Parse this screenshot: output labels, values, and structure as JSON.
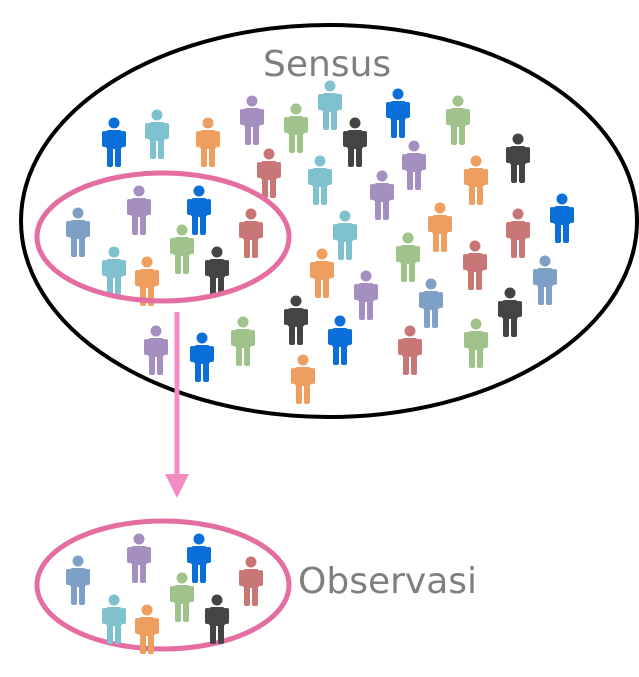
{
  "labels": {
    "population": "Sensus",
    "sample": "Observasi"
  },
  "colors": {
    "population_outline": "#000000",
    "sample_outline": "#e46da1",
    "arrow": "#f48cc4",
    "label_text": "#7f7f7f",
    "person_palette": {
      "blue": "#0a6fd8",
      "teal": "#7fc1cf",
      "orange": "#ee9e5e",
      "purple": "#a48fc0",
      "green": "#9fc38a",
      "red": "#c97676",
      "black": "#444444",
      "steel": "#7e9fc6"
    }
  },
  "population_people": [
    "blue",
    "teal",
    "orange",
    "purple",
    "green",
    "teal",
    "blue",
    "green",
    "black",
    "red",
    "purple",
    "black",
    "teal",
    "purple",
    "orange",
    "teal",
    "orange",
    "red",
    "blue",
    "green",
    "orange",
    "red",
    "steel",
    "steel",
    "purple",
    "black",
    "black",
    "blue",
    "red",
    "green",
    "purple",
    "blue",
    "green",
    "orange"
  ],
  "sample_people": [
    "steel",
    "purple",
    "blue",
    "red",
    "teal",
    "orange",
    "green",
    "black"
  ]
}
